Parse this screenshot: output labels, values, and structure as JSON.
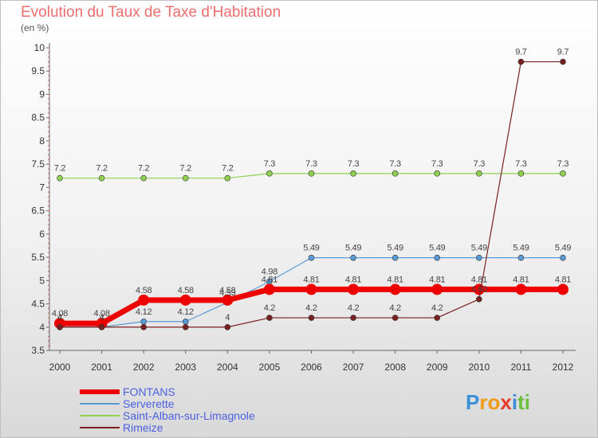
{
  "title": "Evolution du Taux de Taxe d'Habitation",
  "subtitle": "(en %)",
  "colors": {
    "FONTANS": "#ee0000",
    "Serverette": "#5b9bd5",
    "Saint-Alban-sur-Limagnole": "#8fd14f",
    "Rimeize": "#7b2020"
  },
  "logo": {
    "letters": [
      {
        "ch": "P",
        "color": "#3a8fd6"
      },
      {
        "ch": "r",
        "color": "#f09a1a"
      },
      {
        "ch": "o",
        "color": "#f09a1a"
      },
      {
        "ch": "x",
        "color": "#e43b2a"
      },
      {
        "ch": "i",
        "color": "#3a8fd6"
      },
      {
        "ch": "t",
        "color": "#6cbf3b"
      },
      {
        "ch": "i",
        "color": "#6cbf3b"
      }
    ]
  },
  "chart_data": {
    "type": "line",
    "title": "Evolution du Taux de Taxe d'Habitation",
    "subtitle": "(en %)",
    "x": [
      2000,
      2001,
      2002,
      2003,
      2004,
      2005,
      2006,
      2007,
      2008,
      2009,
      2010,
      2011,
      2012
    ],
    "ylim": [
      3.5,
      10
    ],
    "yticks": [
      "3.5",
      "4",
      "4.5",
      "5",
      "5.5",
      "6",
      "6.5",
      "7",
      "7.5",
      "8",
      "8.5",
      "9",
      "9.5",
      "10"
    ],
    "legend_position": "bottom-left",
    "grid": false,
    "series": [
      {
        "name": "FONTANS",
        "values": [
          4.08,
          4.08,
          4.58,
          4.58,
          4.58,
          4.81,
          4.81,
          4.81,
          4.81,
          4.81,
          4.81,
          4.81,
          4.81
        ],
        "labels": [
          "4.08",
          "4.08",
          "4.58",
          "4.58",
          "4.58",
          "4.81",
          "4.81",
          "4.81",
          "4.81",
          "4.81",
          "4.81",
          "4.81",
          "4.81"
        ]
      },
      {
        "name": "Serverette",
        "values": [
          4,
          4,
          4.12,
          4.12,
          4.53,
          4.98,
          5.49,
          5.49,
          5.49,
          5.49,
          5.49,
          5.49,
          5.49
        ],
        "labels": [
          "4",
          "4",
          "4.12",
          "4.12",
          "4.53",
          "4.98",
          "5.49",
          "5.49",
          "5.49",
          "5.49",
          "5.49",
          "5.49",
          "5.49"
        ]
      },
      {
        "name": "Saint-Alban-sur-Limagnole",
        "values": [
          7.2,
          7.2,
          7.2,
          7.2,
          7.2,
          7.3,
          7.3,
          7.3,
          7.3,
          7.3,
          7.3,
          7.3,
          7.3
        ],
        "labels": [
          "7.2",
          "7.2",
          "7.2",
          "7.2",
          "7.2",
          "7.3",
          "7.3",
          "7.3",
          "7.3",
          "7.3",
          "7.3",
          "7.3",
          "7.3"
        ]
      },
      {
        "name": "Rimeize",
        "values": [
          4,
          4,
          4,
          4,
          4,
          4.2,
          4.2,
          4.2,
          4.2,
          4.2,
          4.6,
          9.7,
          9.7
        ],
        "labels": [
          "4",
          "4",
          "",
          "",
          "4",
          "4.2",
          "4.2",
          "4.2",
          "4.2",
          "4.2",
          "4.60",
          "9.7",
          "9.7"
        ]
      }
    ]
  }
}
